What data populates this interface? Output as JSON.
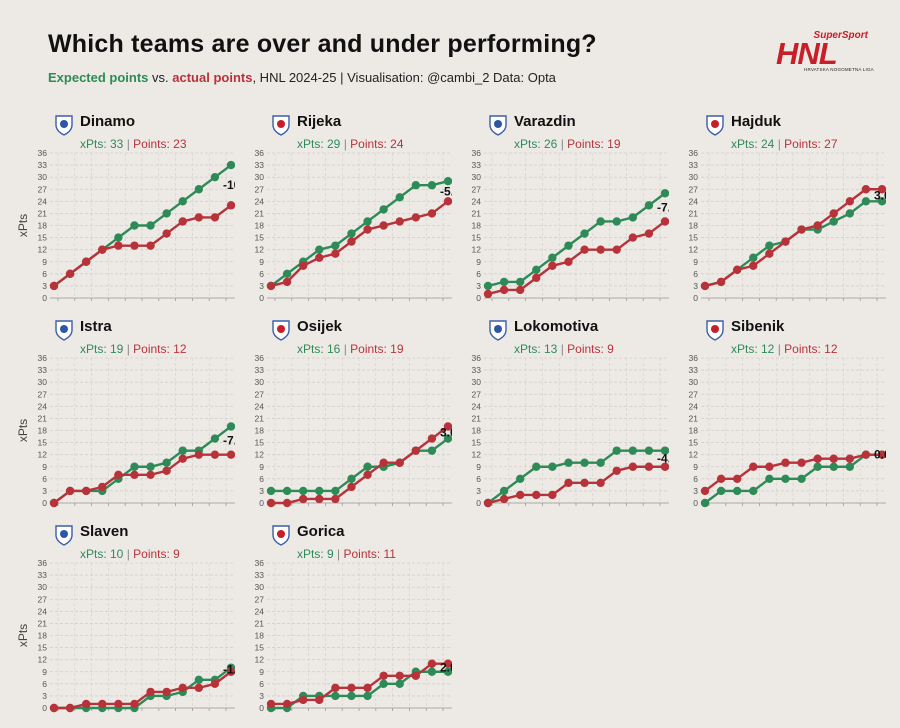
{
  "header": {
    "title": "Which teams are over and under performing?",
    "subtitle_green": "Expected points",
    "subtitle_vs": " vs. ",
    "subtitle_red": "actual points",
    "subtitle_rest": ", HNL 2024-25 | Visualisation: @cambi_2 Data: Opta"
  },
  "logo": {
    "brand": "SuperSport",
    "name": "HNL",
    "tagline": "HRVATSKA NOGOMETNA LIGA"
  },
  "colors": {
    "expected": "#2e8b57",
    "actual": "#b8323a",
    "grid": "#d2cfcb"
  },
  "labels": {
    "xpts_prefix": "xPts: ",
    "points_prefix": "Points: ",
    "separator": " | "
  },
  "chart_data": {
    "type": "line",
    "ylabel": "xPts",
    "ylim": [
      0,
      36
    ],
    "yticks": [
      0,
      3,
      6,
      9,
      12,
      15,
      18,
      21,
      24,
      27,
      30,
      33,
      36
    ],
    "series_names": [
      "Expected points",
      "actual points"
    ],
    "teams": [
      {
        "name": "Dinamo",
        "xpts": 33,
        "points": 23,
        "diff": "-10.0",
        "xg": [
          3,
          6,
          9,
          12,
          15,
          18,
          18,
          21,
          24,
          27,
          30,
          33
        ],
        "pts": [
          3,
          6,
          9,
          12,
          13,
          13,
          13,
          16,
          19,
          20,
          20,
          23
        ]
      },
      {
        "name": "Rijeka",
        "xpts": 29,
        "points": 24,
        "diff": "-5.0",
        "xg": [
          3,
          6,
          9,
          12,
          13,
          16,
          19,
          22,
          25,
          28,
          28,
          29
        ],
        "pts": [
          3,
          4,
          8,
          10,
          11,
          14,
          17,
          18,
          19,
          20,
          21,
          24
        ]
      },
      {
        "name": "Varazdin",
        "xpts": 26,
        "points": 19,
        "diff": "-7.0",
        "xg": [
          3,
          4,
          4,
          7,
          10,
          13,
          16,
          19,
          19,
          20,
          23,
          26
        ],
        "pts": [
          1,
          2,
          2,
          5,
          8,
          9,
          12,
          12,
          12,
          15,
          16,
          19
        ]
      },
      {
        "name": "Hajduk",
        "xpts": 24,
        "points": 27,
        "diff": "3.0",
        "xg": [
          3,
          4,
          7,
          10,
          13,
          14,
          17,
          17,
          19,
          21,
          24,
          24
        ],
        "pts": [
          3,
          4,
          7,
          8,
          11,
          14,
          17,
          18,
          21,
          24,
          27,
          27
        ]
      },
      {
        "name": "Istra",
        "xpts": 19,
        "points": 12,
        "diff": "-7.0",
        "xg": [
          0,
          3,
          3,
          3,
          6,
          9,
          9,
          10,
          13,
          13,
          16,
          19
        ],
        "pts": [
          0,
          3,
          3,
          4,
          7,
          7,
          7,
          8,
          11,
          12,
          12,
          12
        ]
      },
      {
        "name": "Osijek",
        "xpts": 16,
        "points": 19,
        "diff": "3.0",
        "xg": [
          3,
          3,
          3,
          3,
          3,
          6,
          9,
          9,
          10,
          13,
          13,
          16
        ],
        "pts": [
          0,
          0,
          1,
          1,
          1,
          4,
          7,
          10,
          10,
          13,
          16,
          19
        ]
      },
      {
        "name": "Lokomotiva",
        "xpts": 13,
        "points": 9,
        "diff": "-4.0",
        "xg": [
          0,
          3,
          6,
          9,
          9,
          10,
          10,
          10,
          13,
          13,
          13,
          13
        ],
        "pts": [
          0,
          1,
          2,
          2,
          2,
          5,
          5,
          5,
          8,
          9,
          9,
          9
        ]
      },
      {
        "name": "Sibenik",
        "xpts": 12,
        "points": 12,
        "diff": "0.0",
        "xg": [
          0,
          3,
          3,
          3,
          6,
          6,
          6,
          9,
          9,
          9,
          12,
          12
        ],
        "pts": [
          3,
          6,
          6,
          9,
          9,
          10,
          10,
          11,
          11,
          11,
          12,
          12
        ]
      },
      {
        "name": "Slaven",
        "xpts": 10,
        "points": 9,
        "diff": "-1.0",
        "xg": [
          0,
          0,
          0,
          0,
          0,
          0,
          3,
          3,
          4,
          7,
          7,
          10
        ],
        "pts": [
          0,
          0,
          1,
          1,
          1,
          1,
          4,
          4,
          5,
          5,
          6,
          9
        ]
      },
      {
        "name": "Gorica",
        "xpts": 9,
        "points": 11,
        "diff": "2.0",
        "xg": [
          0,
          0,
          3,
          3,
          3,
          3,
          3,
          6,
          6,
          9,
          9,
          9
        ],
        "pts": [
          1,
          1,
          2,
          2,
          5,
          5,
          5,
          8,
          8,
          8,
          11,
          11
        ]
      }
    ]
  }
}
